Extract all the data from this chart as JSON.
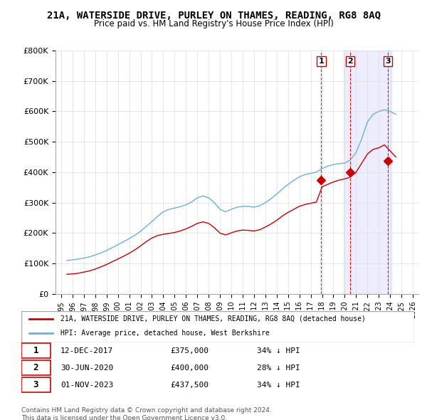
{
  "title": "21A, WATERSIDE DRIVE, PURLEY ON THAMES, READING, RG8 8AQ",
  "subtitle": "Price paid vs. HM Land Registry's House Price Index (HPI)",
  "xlabel_years": [
    "1995",
    "1996",
    "1997",
    "1998",
    "1999",
    "2000",
    "2001",
    "2002",
    "2003",
    "2004",
    "2005",
    "2006",
    "2007",
    "2008",
    "2009",
    "2010",
    "2011",
    "2012",
    "2013",
    "2014",
    "2015",
    "2016",
    "2017",
    "2018",
    "2019",
    "2020",
    "2021",
    "2022",
    "2023",
    "2024",
    "2025",
    "2026"
  ],
  "ylim": [
    0,
    800000
  ],
  "yticks": [
    0,
    100000,
    200000,
    300000,
    400000,
    500000,
    600000,
    700000,
    800000
  ],
  "ytick_labels": [
    "£0",
    "£100K",
    "£200K",
    "£300K",
    "£400K",
    "£500K",
    "£600K",
    "£700K",
    "£800K"
  ],
  "hpi_color": "#6ab0e0",
  "price_color": "#cc0000",
  "transaction_color": "#cc0000",
  "transaction_marker_color": "#cc0000",
  "dashed_line_color": "#cc0000",
  "background_color": "#ffffff",
  "grid_color": "#dddddd",
  "legend_label_red": "21A, WATERSIDE DRIVE, PURLEY ON THAMES, READING, RG8 8AQ (detached house)",
  "legend_label_blue": "HPI: Average price, detached house, West Berkshire",
  "transactions": [
    {
      "num": 1,
      "date": "12-DEC-2017",
      "price": "£375,000",
      "hpi": "34% ↓ HPI",
      "year": 2017.93
    },
    {
      "num": 2,
      "date": "30-JUN-2020",
      "price": "£400,000",
      "hpi": "28% ↓ HPI",
      "year": 2020.5
    },
    {
      "num": 3,
      "date": "01-NOV-2023",
      "price": "£437,500",
      "hpi": "34% ↓ HPI",
      "year": 2023.83
    }
  ],
  "transaction_values": [
    375000,
    400000,
    437500
  ],
  "copyright": "Contains HM Land Registry data © Crown copyright and database right 2024.\nThis data is licensed under the Open Government Licence v3.0.",
  "hpi_data_x": [
    1995.5,
    1996.0,
    1996.5,
    1997.0,
    1997.5,
    1998.0,
    1998.5,
    1999.0,
    1999.5,
    2000.0,
    2000.5,
    2001.0,
    2001.5,
    2002.0,
    2002.5,
    2003.0,
    2003.5,
    2004.0,
    2004.5,
    2005.0,
    2005.5,
    2006.0,
    2006.5,
    2007.0,
    2007.5,
    2008.0,
    2008.5,
    2009.0,
    2009.5,
    2010.0,
    2010.5,
    2011.0,
    2011.5,
    2012.0,
    2012.5,
    2013.0,
    2013.5,
    2014.0,
    2014.5,
    2015.0,
    2015.5,
    2016.0,
    2016.5,
    2017.0,
    2017.5,
    2018.0,
    2018.5,
    2019.0,
    2019.5,
    2020.0,
    2020.5,
    2021.0,
    2021.5,
    2022.0,
    2022.5,
    2023.0,
    2023.5,
    2024.0,
    2024.5
  ],
  "hpi_data_y": [
    110000,
    112000,
    115000,
    118000,
    122000,
    128000,
    135000,
    143000,
    152000,
    162000,
    172000,
    182000,
    193000,
    206000,
    222000,
    238000,
    255000,
    270000,
    278000,
    282000,
    287000,
    293000,
    302000,
    316000,
    322000,
    316000,
    300000,
    278000,
    270000,
    278000,
    285000,
    288000,
    288000,
    285000,
    290000,
    300000,
    313000,
    328000,
    345000,
    360000,
    373000,
    385000,
    392000,
    396000,
    400000,
    412000,
    420000,
    425000,
    428000,
    430000,
    440000,
    465000,
    510000,
    565000,
    590000,
    600000,
    605000,
    600000,
    590000
  ],
  "price_data_x": [
    1995.5,
    1996.0,
    1996.5,
    1997.0,
    1997.5,
    1998.0,
    1998.5,
    1999.0,
    1999.5,
    2000.0,
    2000.5,
    2001.0,
    2001.5,
    2002.0,
    2002.5,
    2003.0,
    2003.5,
    2004.0,
    2004.5,
    2005.0,
    2005.5,
    2006.0,
    2006.5,
    2007.0,
    2007.5,
    2008.0,
    2008.5,
    2009.0,
    2009.5,
    2010.0,
    2010.5,
    2011.0,
    2011.5,
    2012.0,
    2012.5,
    2013.0,
    2013.5,
    2014.0,
    2014.5,
    2015.0,
    2015.5,
    2016.0,
    2016.5,
    2017.0,
    2017.5,
    2018.0,
    2018.5,
    2019.0,
    2019.5,
    2020.0,
    2020.5,
    2021.0,
    2021.5,
    2022.0,
    2022.5,
    2023.0,
    2023.5,
    2024.0,
    2024.5
  ],
  "price_data_y": [
    65000,
    66000,
    68000,
    72000,
    76000,
    82000,
    89000,
    97000,
    106000,
    115000,
    124000,
    134000,
    145000,
    158000,
    172000,
    184000,
    192000,
    196000,
    199000,
    202000,
    207000,
    214000,
    222000,
    232000,
    237000,
    232000,
    218000,
    200000,
    194000,
    201000,
    207000,
    210000,
    209000,
    207000,
    211000,
    220000,
    230000,
    242000,
    256000,
    268000,
    278000,
    288000,
    294000,
    298000,
    302000,
    352000,
    360000,
    368000,
    374000,
    378000,
    384000,
    400000,
    430000,
    460000,
    475000,
    480000,
    490000,
    470000,
    450000
  ],
  "xlim": [
    1994.5,
    2026.5
  ]
}
